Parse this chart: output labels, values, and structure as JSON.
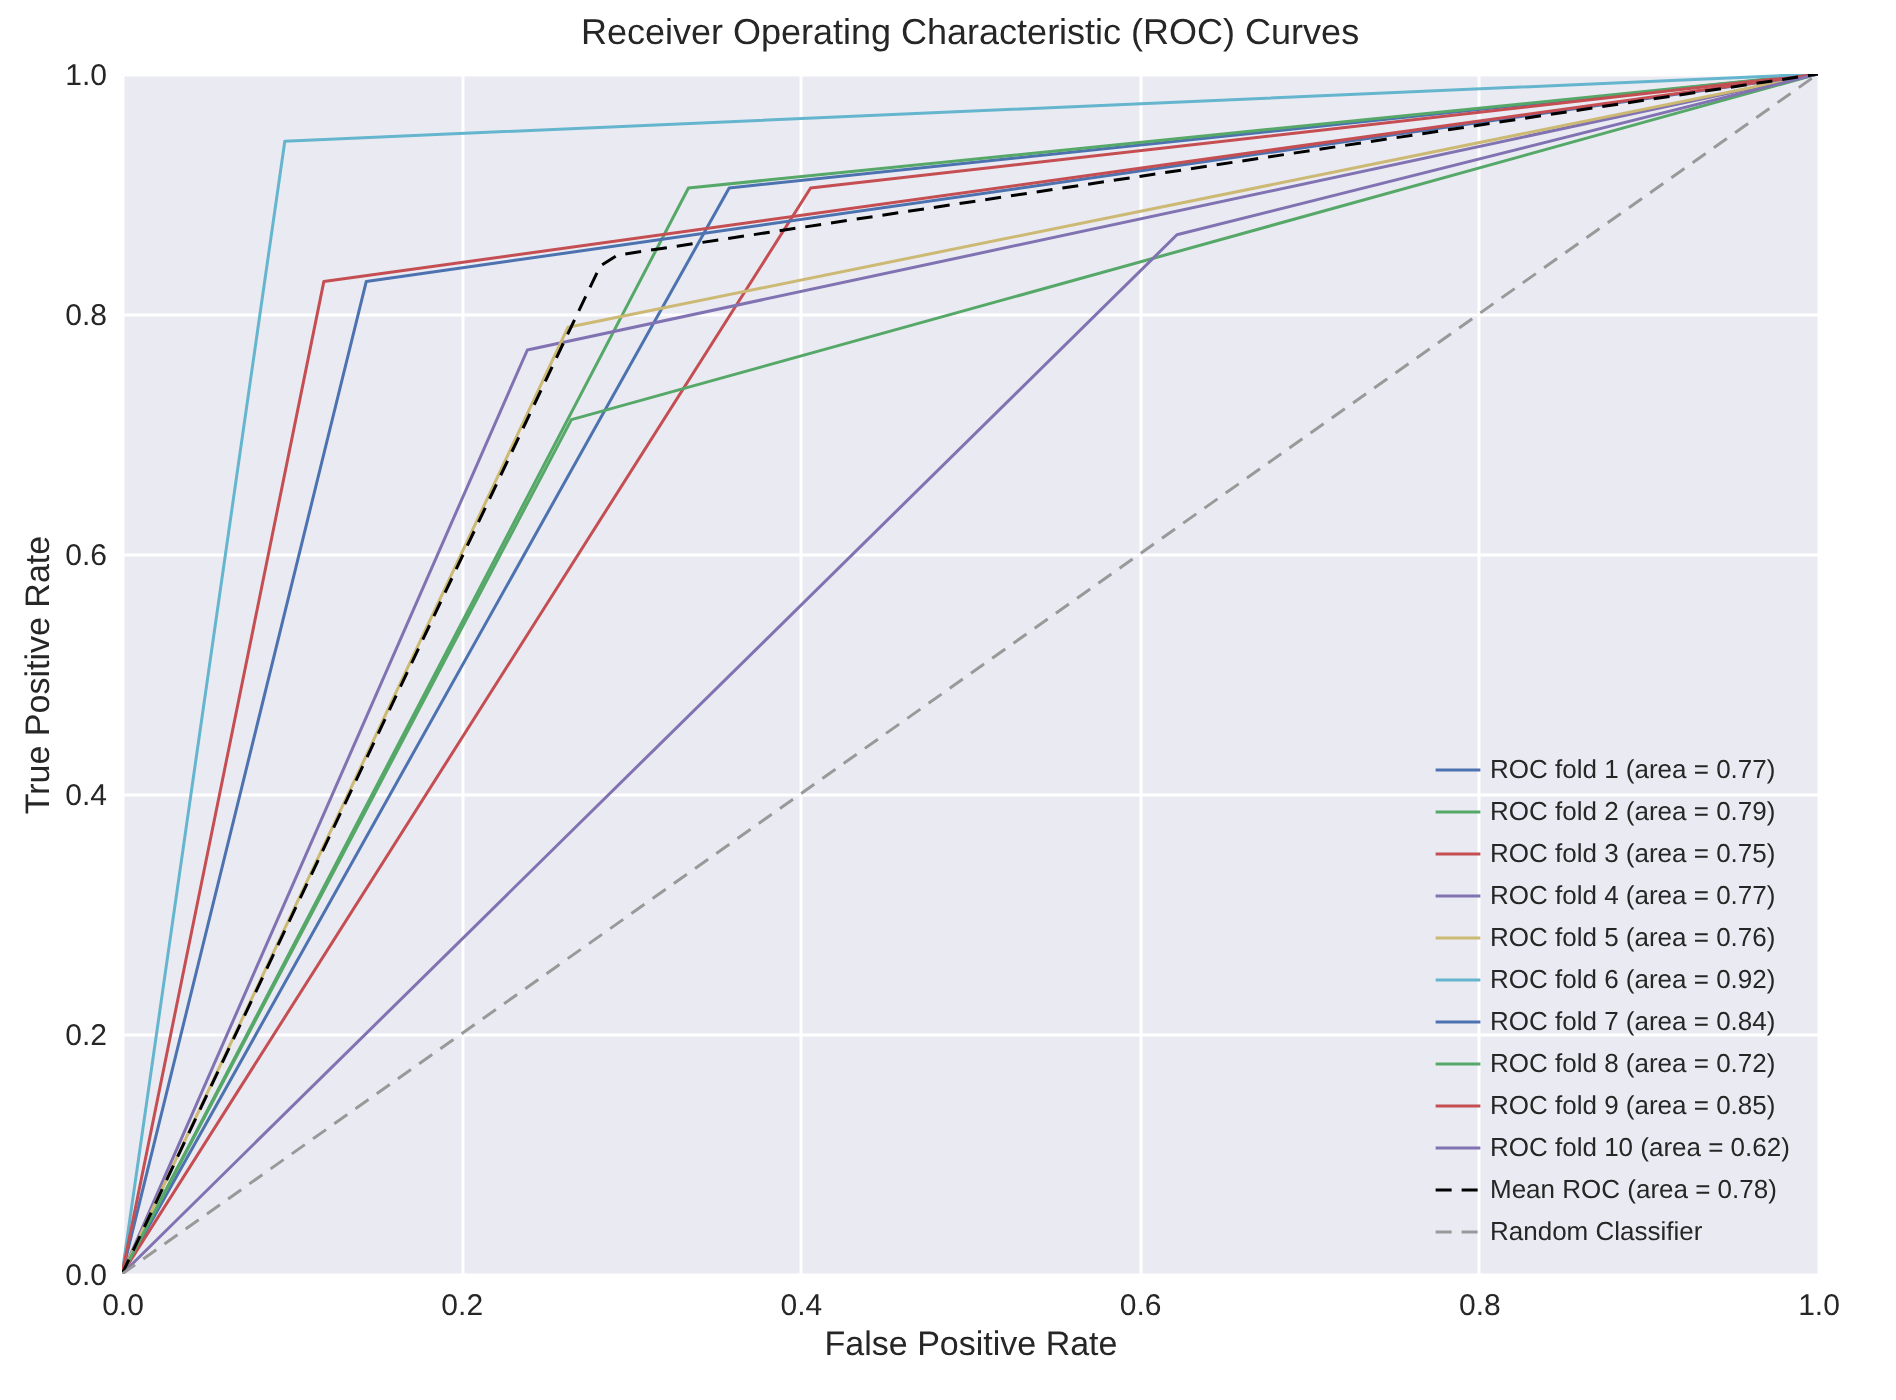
{
  "chart_data": {
    "type": "line",
    "title": "Receiver Operating Characteristic (ROC) Curves",
    "xlabel": "False Positive Rate",
    "ylabel": "True Positive Rate",
    "xlim": [
      0,
      1
    ],
    "ylim": [
      0,
      1
    ],
    "xticks": [
      {
        "value": 0,
        "label": "0.0"
      },
      {
        "value": 0.2,
        "label": "0.2"
      },
      {
        "value": 0.4,
        "label": "0.4"
      },
      {
        "value": 0.6,
        "label": "0.6"
      },
      {
        "value": 0.8,
        "label": "0.8"
      },
      {
        "value": 1,
        "label": "1.0"
      }
    ],
    "yticks": [
      {
        "value": 0,
        "label": "0.0"
      },
      {
        "value": 0.2,
        "label": "0.2"
      },
      {
        "value": 0.4,
        "label": "0.4"
      },
      {
        "value": 0.6,
        "label": "0.6"
      },
      {
        "value": 0.8,
        "label": "0.8"
      },
      {
        "value": 1,
        "label": "1.0"
      }
    ],
    "grid": true,
    "legend": "bottom right",
    "series": [
      {
        "name": "ROC fold 1 (area = 0.77)",
        "color": "#4c72b0",
        "x": [
          0,
          0.358,
          1
        ],
        "values": [
          0,
          0.905,
          1
        ]
      },
      {
        "name": "ROC fold 2 (area = 0.79)",
        "color": "#55a868",
        "x": [
          0,
          0.334,
          1
        ],
        "values": [
          0,
          0.905,
          1
        ]
      },
      {
        "name": "ROC fold 3 (area = 0.75)",
        "color": "#c44e52",
        "x": [
          0,
          0.406,
          1
        ],
        "values": [
          0,
          0.905,
          1
        ]
      },
      {
        "name": "ROC fold 4 (area = 0.77)",
        "color": "#8172b2",
        "x": [
          0,
          0.239,
          1
        ],
        "values": [
          0,
          0.77,
          1
        ]
      },
      {
        "name": "ROC fold 5 (area = 0.76)",
        "color": "#ccb974",
        "x": [
          0,
          0.263,
          1
        ],
        "values": [
          0,
          0.789,
          1
        ]
      },
      {
        "name": "ROC fold 6 (area = 0.92)",
        "color": "#64b5cd",
        "x": [
          0,
          0.096,
          1
        ],
        "values": [
          0,
          0.944,
          1
        ]
      },
      {
        "name": "ROC fold 7 (area = 0.84)",
        "color": "#4c72b0",
        "x": [
          0,
          0.144,
          1
        ],
        "values": [
          0,
          0.827,
          1
        ]
      },
      {
        "name": "ROC fold 8 (area = 0.72)",
        "color": "#55a868",
        "x": [
          0,
          0.265,
          1
        ],
        "values": [
          0,
          0.712,
          1
        ]
      },
      {
        "name": "ROC fold 9 (area = 0.85)",
        "color": "#c44e52",
        "x": [
          0,
          0.119,
          1
        ],
        "values": [
          0,
          0.827,
          1
        ]
      },
      {
        "name": "ROC fold 10 (area = 0.62)",
        "color": "#8172b2",
        "x": [
          0,
          0.622,
          1
        ],
        "values": [
          0,
          0.866,
          1
        ]
      },
      {
        "name": "Mean ROC (area = 0.78)",
        "color": "#000000",
        "line_style": "dashed",
        "x": [
          0,
          0.26,
          0.282,
          0.292,
          0.4,
          1
        ],
        "values": [
          0,
          0.775,
          0.84,
          0.849,
          0.872,
          1
        ]
      },
      {
        "name": "Random Classifier",
        "color": "#999999",
        "line_style": "dashed",
        "x": [
          0,
          1
        ],
        "values": [
          0,
          1
        ]
      }
    ]
  }
}
